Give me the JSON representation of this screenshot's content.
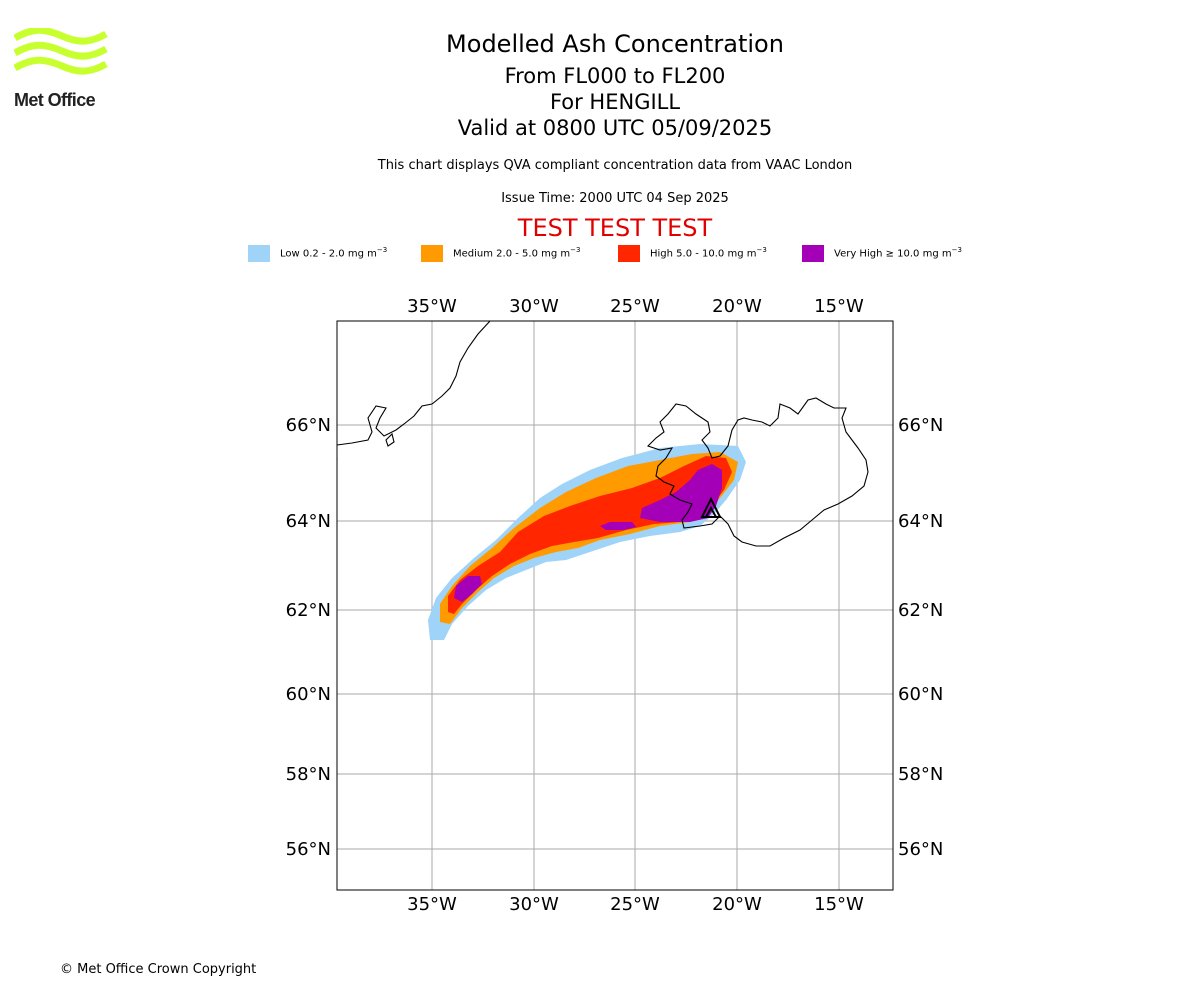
{
  "logo": {
    "text": "Met Office",
    "color": "#c8ff2e"
  },
  "titles": {
    "main": "Modelled Ash Concentration",
    "levels": "From FL000 to FL200",
    "volcano": "For HENGILL",
    "valid": "Valid at 0800 UTC 05/09/2025",
    "note": "This chart displays QVA compliant concentration data from VAAC London",
    "issue": "Issue Time: 2000 UTC 04 Sep 2025",
    "test": "TEST TEST TEST"
  },
  "legend": [
    {
      "label": "Low 0.2 - 2.0 mg m",
      "unit_power": "−3",
      "color": "#9fd3f8"
    },
    {
      "label": "Medium 2.0 - 5.0 mg m",
      "unit_power": "−3",
      "color": "#ff9a00"
    },
    {
      "label": "High 5.0 - 10.0 mg m",
      "unit_power": "−3",
      "color": "#ff2600"
    },
    {
      "label": "Very High  ≥  10.0 mg m",
      "unit_power": "−3",
      "color": "#a300b8"
    }
  ],
  "map": {
    "longitude_labels": [
      "35°W",
      "30°W",
      "25°W",
      "20°W",
      "15°W"
    ],
    "latitude_labels": [
      "66°N",
      "64°N",
      "62°N",
      "60°N",
      "58°N",
      "56°N"
    ],
    "grid_color": "#aaaaaa",
    "volcano_marker": "volcano-triangle-icon"
  },
  "footer": {
    "copyright": "© Met Office Crown Copyright"
  }
}
